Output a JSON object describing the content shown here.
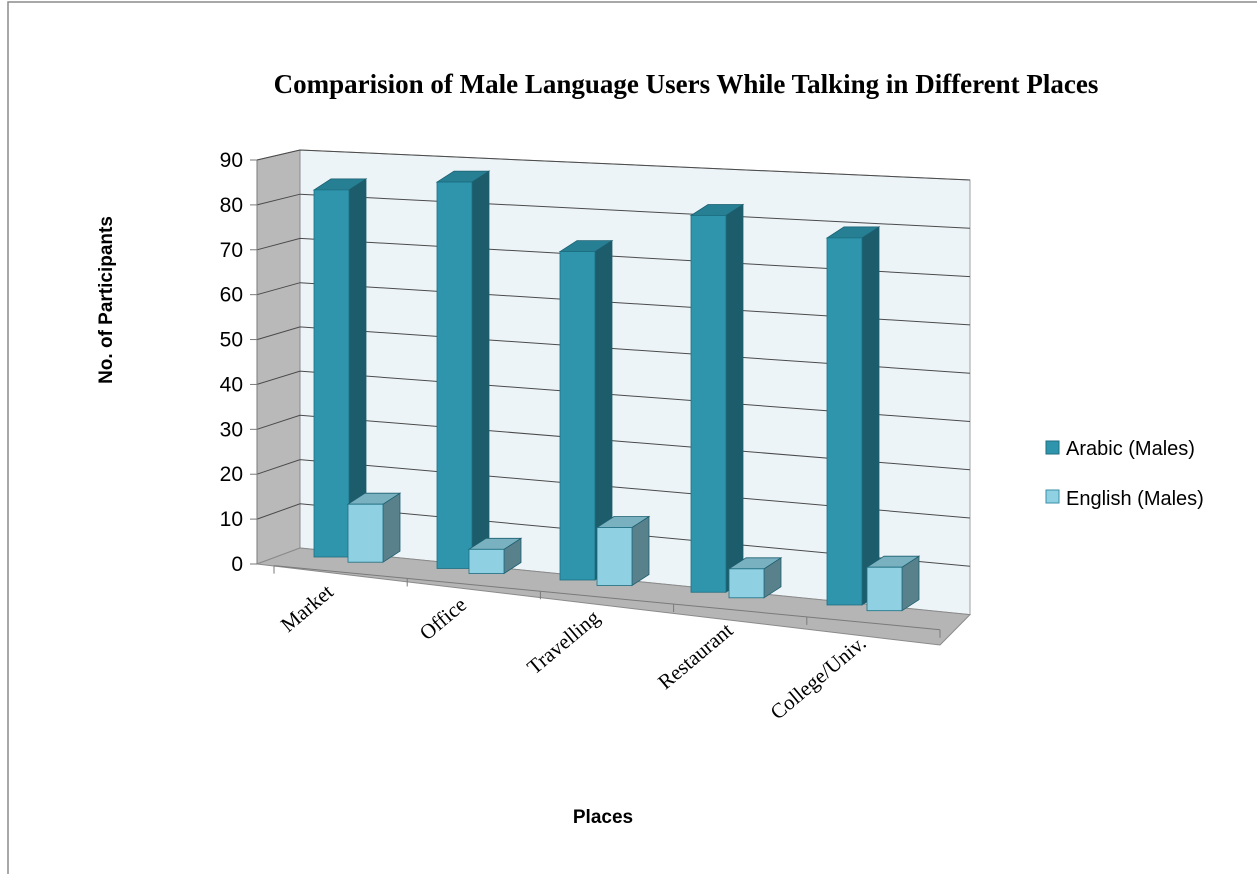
{
  "chart_data": {
    "type": "bar",
    "title": "Comparision of Male Language Users While Talking in Different Places",
    "xlabel": "Places",
    "ylabel": "No. of Participants",
    "categories": [
      "Market",
      "Office",
      "Travelling",
      "Restaurant",
      "College/Univ."
    ],
    "series": [
      {
        "name": "Arabic (Males)",
        "values": [
          76,
          80,
          68,
          78,
          76
        ],
        "color": "#2e95ad"
      },
      {
        "name": "English (Males)",
        "values": [
          12,
          5,
          12,
          6,
          9
        ],
        "color": "#8fd0e2"
      }
    ],
    "ylim": [
      0,
      90
    ],
    "yticks": [
      0,
      10,
      20,
      30,
      40,
      50,
      60,
      70,
      80,
      90
    ],
    "grid": true,
    "legend_position": "right",
    "style": "3d-clustered-column"
  }
}
